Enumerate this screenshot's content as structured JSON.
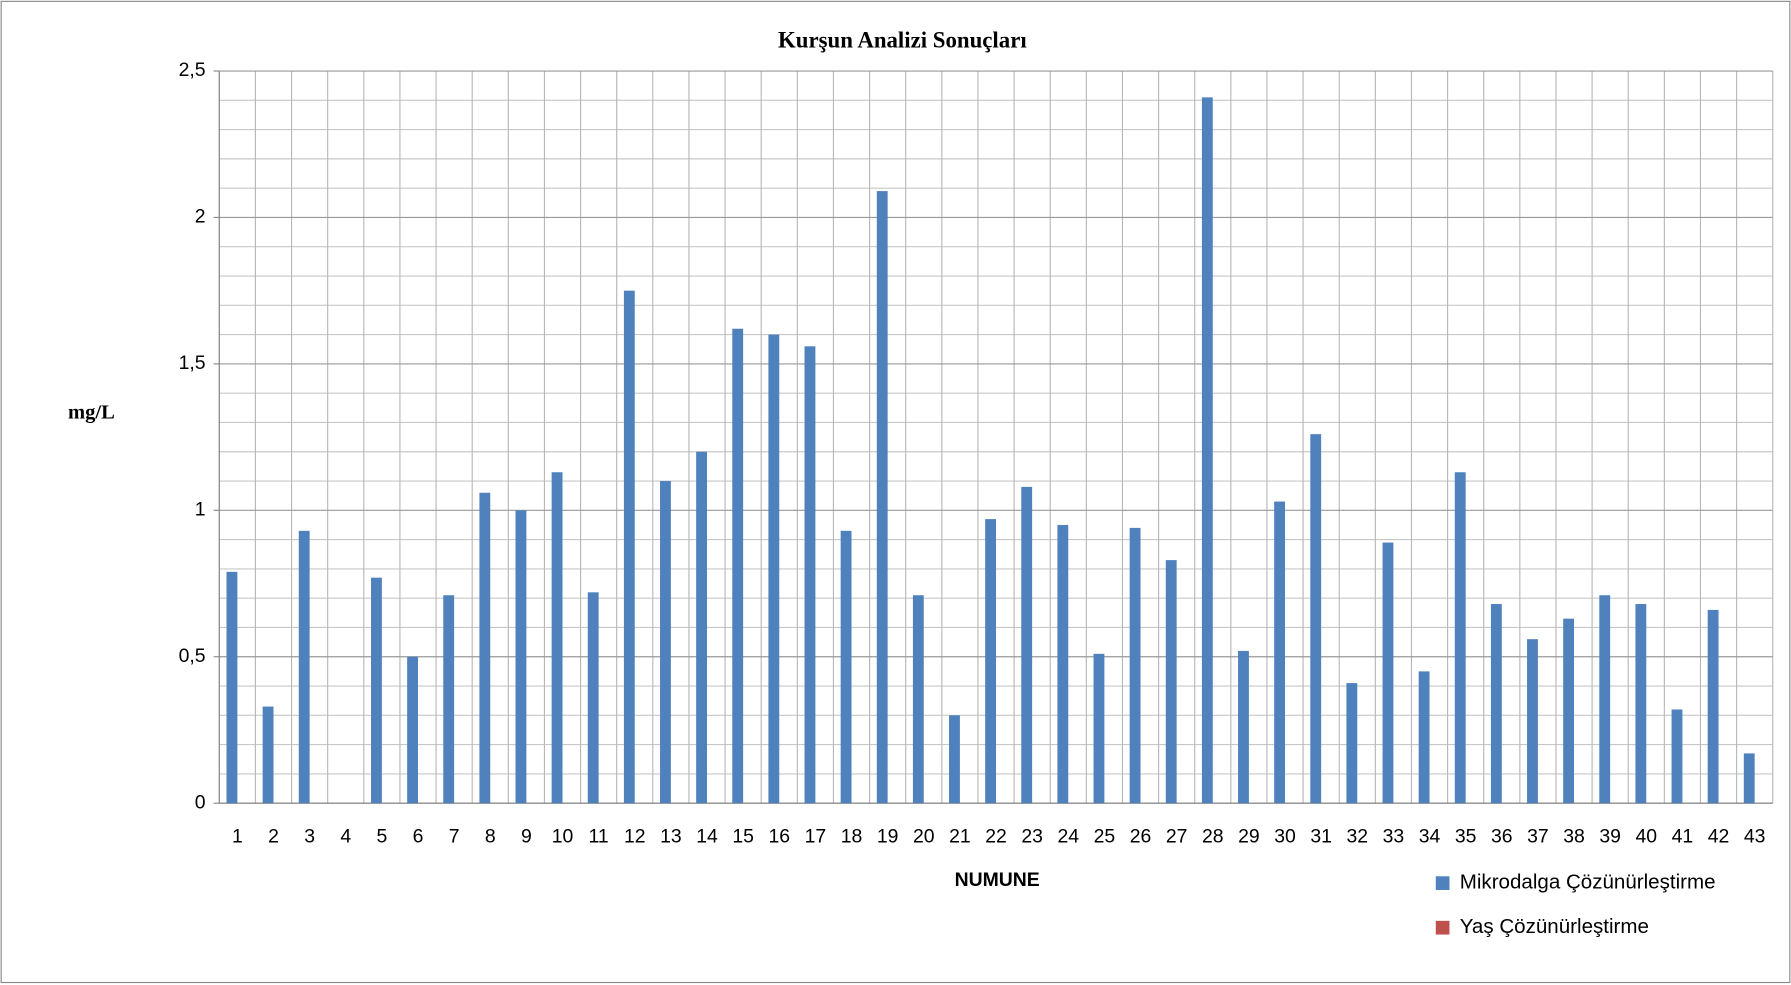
{
  "chart_data": {
    "type": "bar",
    "title": "Kurşun Analizi Sonuçları",
    "x_label": "NUMUNE",
    "y_label": "mg/L",
    "categories": [
      "1",
      "2",
      "3",
      "4",
      "5",
      "6",
      "7",
      "8",
      "9",
      "10",
      "11",
      "12",
      "13",
      "14",
      "15",
      "16",
      "17",
      "18",
      "19",
      "20",
      "21",
      "22",
      "23",
      "24",
      "25",
      "26",
      "27",
      "28",
      "29",
      "30",
      "31",
      "32",
      "33",
      "34",
      "35",
      "36",
      "37",
      "38",
      "39",
      "40",
      "41",
      "42",
      "43"
    ],
    "series": [
      {
        "name": "Mikrodalga Çözünürleştirme",
        "color": "#4f81bd",
        "values": [
          0.79,
          0.33,
          0.93,
          0,
          0.77,
          0.5,
          0.71,
          1.06,
          1.0,
          1.13,
          0.72,
          1.75,
          1.1,
          1.2,
          1.62,
          1.6,
          1.56,
          0.93,
          2.09,
          0.71,
          0.3,
          0.97,
          1.08,
          0.95,
          0.51,
          0.94,
          0.83,
          2.41,
          0.52,
          1.03,
          1.26,
          0.41,
          0.89,
          0.45,
          1.13,
          0.68,
          0.56,
          0.63,
          0.71,
          0.68,
          0.32,
          0.66,
          0.17
        ]
      },
      {
        "name": "Yaş Çözünürleştirme",
        "color": "#c0504d",
        "values": [
          null,
          null,
          null,
          null,
          null,
          null,
          null,
          null,
          null,
          null,
          null,
          null,
          null,
          null,
          null,
          null,
          null,
          null,
          null,
          null,
          null,
          null,
          null,
          null,
          null,
          null,
          null,
          null,
          null,
          null,
          null,
          null,
          null,
          null,
          null,
          null,
          null,
          null,
          null,
          null,
          null,
          null,
          null
        ]
      }
    ],
    "ylim": [
      0,
      2.5
    ],
    "yticks": [
      0,
      {
        "value": 0.5,
        "label": "0,5"
      },
      1,
      {
        "value": 1.5,
        "label": "1,5"
      },
      2,
      {
        "value": 2.5,
        "label": "2,5"
      }
    ],
    "minor_yticks": [
      0.1,
      0.2,
      0.3,
      0.4,
      0.6,
      0.7,
      0.8,
      0.9,
      1.1,
      1.2,
      1.3,
      1.4,
      1.6,
      1.7,
      1.8,
      1.9,
      2.1,
      2.2,
      2.3,
      2.4
    ],
    "grid": true,
    "legend": "bottom-right"
  }
}
